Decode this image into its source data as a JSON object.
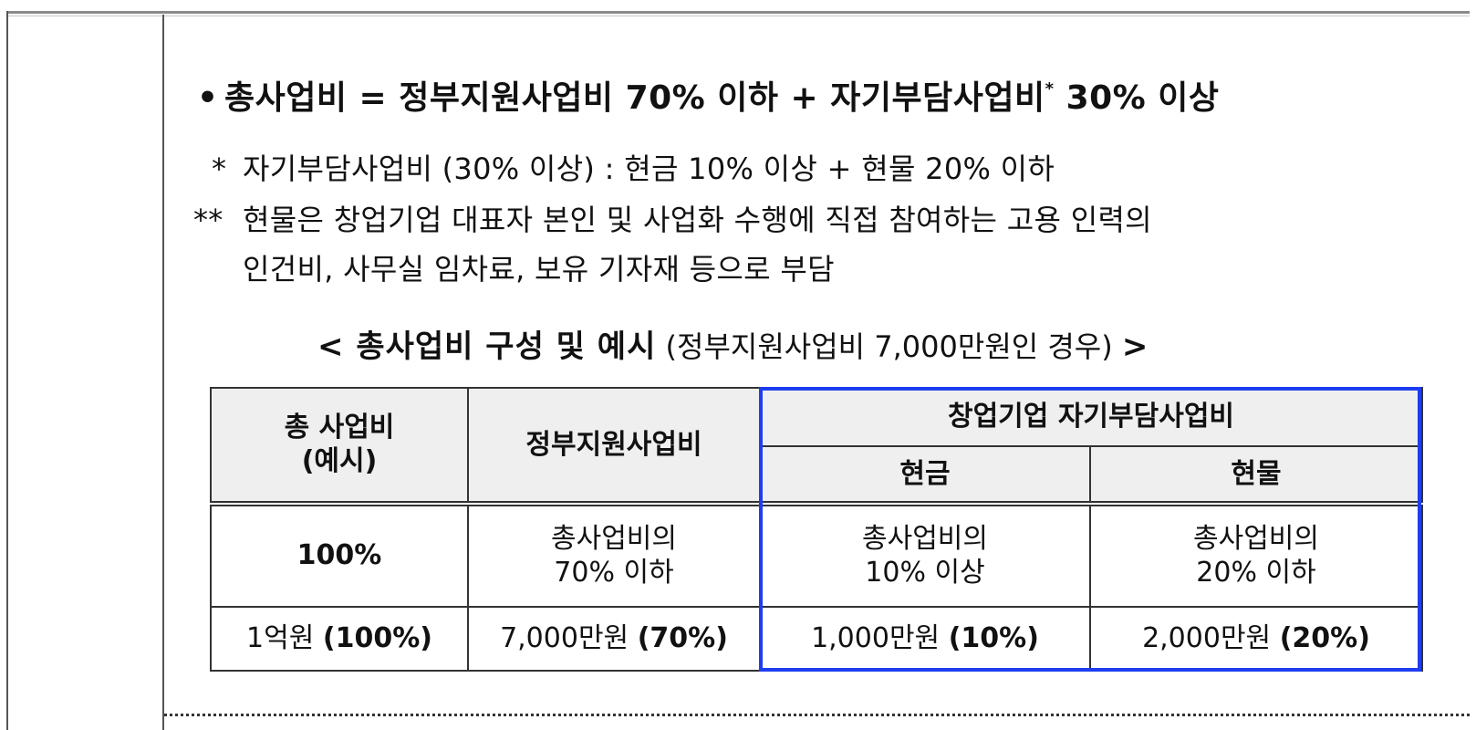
{
  "formula": {
    "bullet": "•",
    "text_a": "총사업비 = 정부지원사업비 70% 이하 + 자기부담사업비",
    "sup": "*",
    "text_b": " 30% 이상"
  },
  "notes": [
    {
      "mark": "*",
      "text": "자기부담사업비 (30% 이상) : 현금 10% 이상 + 현물 20% 이하"
    },
    {
      "mark": "**",
      "text": "현물은 창업기업 대표자 본인 및 사업화 수행에 직접 참여하는 고용 인력의",
      "cont": "인건비, 사무실 임차료, 보유 기자재 등으로 부담"
    }
  ],
  "caption": {
    "open": "< ",
    "title": "총사업비 구성 및 예시",
    "sub": " (정부지원사업비 7,000만원인 경우) ",
    "close": ">"
  },
  "table": {
    "headers": {
      "total_line1": "총 사업비",
      "total_line2": "(예시)",
      "gov": "정부지원사업비",
      "self": "창업기업 자기부담사업비",
      "cash": "현금",
      "inkind": "현물"
    },
    "rows": [
      {
        "total": "100%",
        "gov_l1": "총사업비의",
        "gov_l2": "70% 이하",
        "cash_l1": "총사업비의",
        "cash_l2": "10% 이상",
        "inkind_l1": "총사업비의",
        "inkind_l2": "20% 이하"
      },
      {
        "total_amt": "1억원",
        "total_pct": "(100%)",
        "gov_amt": "7,000만원",
        "gov_pct": "(70%)",
        "cash_amt": "1,000만원",
        "cash_pct": "(10%)",
        "inkind_amt": "2,000만원",
        "inkind_pct": "(20%)"
      }
    ]
  },
  "colors": {
    "highlight": "#1f3df0"
  }
}
